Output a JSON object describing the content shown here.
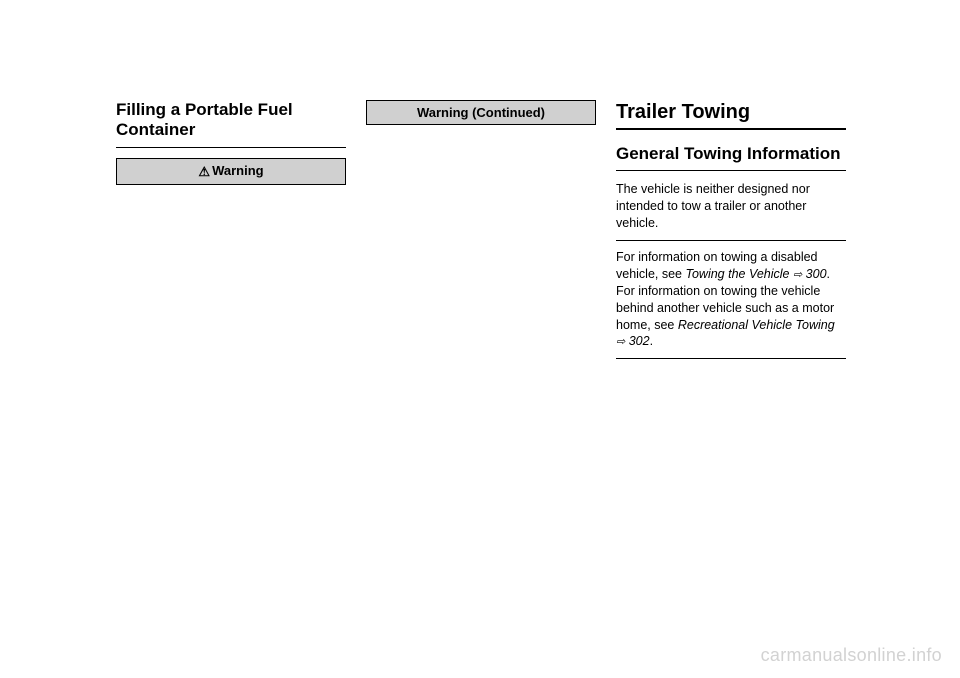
{
  "col1": {
    "heading": "Filling a Portable Fuel Container",
    "warning_label": "Warning"
  },
  "col2": {
    "warning_label": "Warning  (Continued)"
  },
  "col3": {
    "main_heading": "Trailer Towing",
    "sub_heading": "General Towing Information",
    "para1": "The vehicle is neither designed nor intended to tow a trailer or another vehicle.",
    "para2_a": "For information on towing a disabled vehicle, see ",
    "para2_link1": "Towing the Vehicle",
    "para2_link1_page": " 300",
    "para2_b": ". For information on towing the vehicle behind another vehicle such as a motor home, see ",
    "para2_link2": "Recreational Vehicle Towing",
    "para2_link2_page": " 302",
    "para2_c": "."
  },
  "watermark": "carmanualsonline.info",
  "link_glyph": "⇨"
}
